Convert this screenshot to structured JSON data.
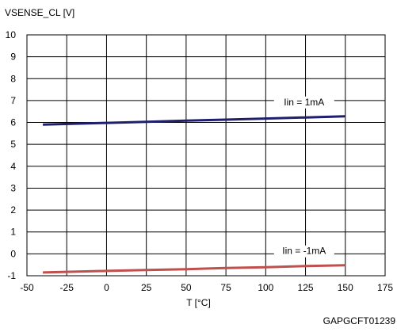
{
  "figure_id": "GAPGCFT01239",
  "chart_data": {
    "type": "line",
    "ylabel": "VSENSE_CL [V]",
    "xlabel": "T [°C]",
    "xlim": [
      -50,
      175
    ],
    "ylim": [
      -1,
      10
    ],
    "x_ticks": [
      -50,
      -25,
      0,
      25,
      50,
      75,
      100,
      125,
      150,
      175
    ],
    "y_ticks": [
      -1,
      0,
      1,
      2,
      3,
      4,
      5,
      6,
      7,
      8,
      9,
      10
    ],
    "grid": true,
    "series": [
      {
        "name": "Iin = 1mA",
        "color": "#1f1f6e",
        "x": [
          -40,
          0,
          25,
          50,
          75,
          100,
          125,
          150
        ],
        "y": [
          5.9,
          5.98,
          6.03,
          6.08,
          6.13,
          6.18,
          6.23,
          6.28
        ]
      },
      {
        "name": "Iin = -1mA",
        "color": "#c0504d",
        "x": [
          -40,
          0,
          25,
          50,
          75,
          100,
          125,
          150
        ],
        "y": [
          -0.85,
          -0.78,
          -0.74,
          -0.7,
          -0.65,
          -0.61,
          -0.56,
          -0.52
        ]
      }
    ]
  }
}
